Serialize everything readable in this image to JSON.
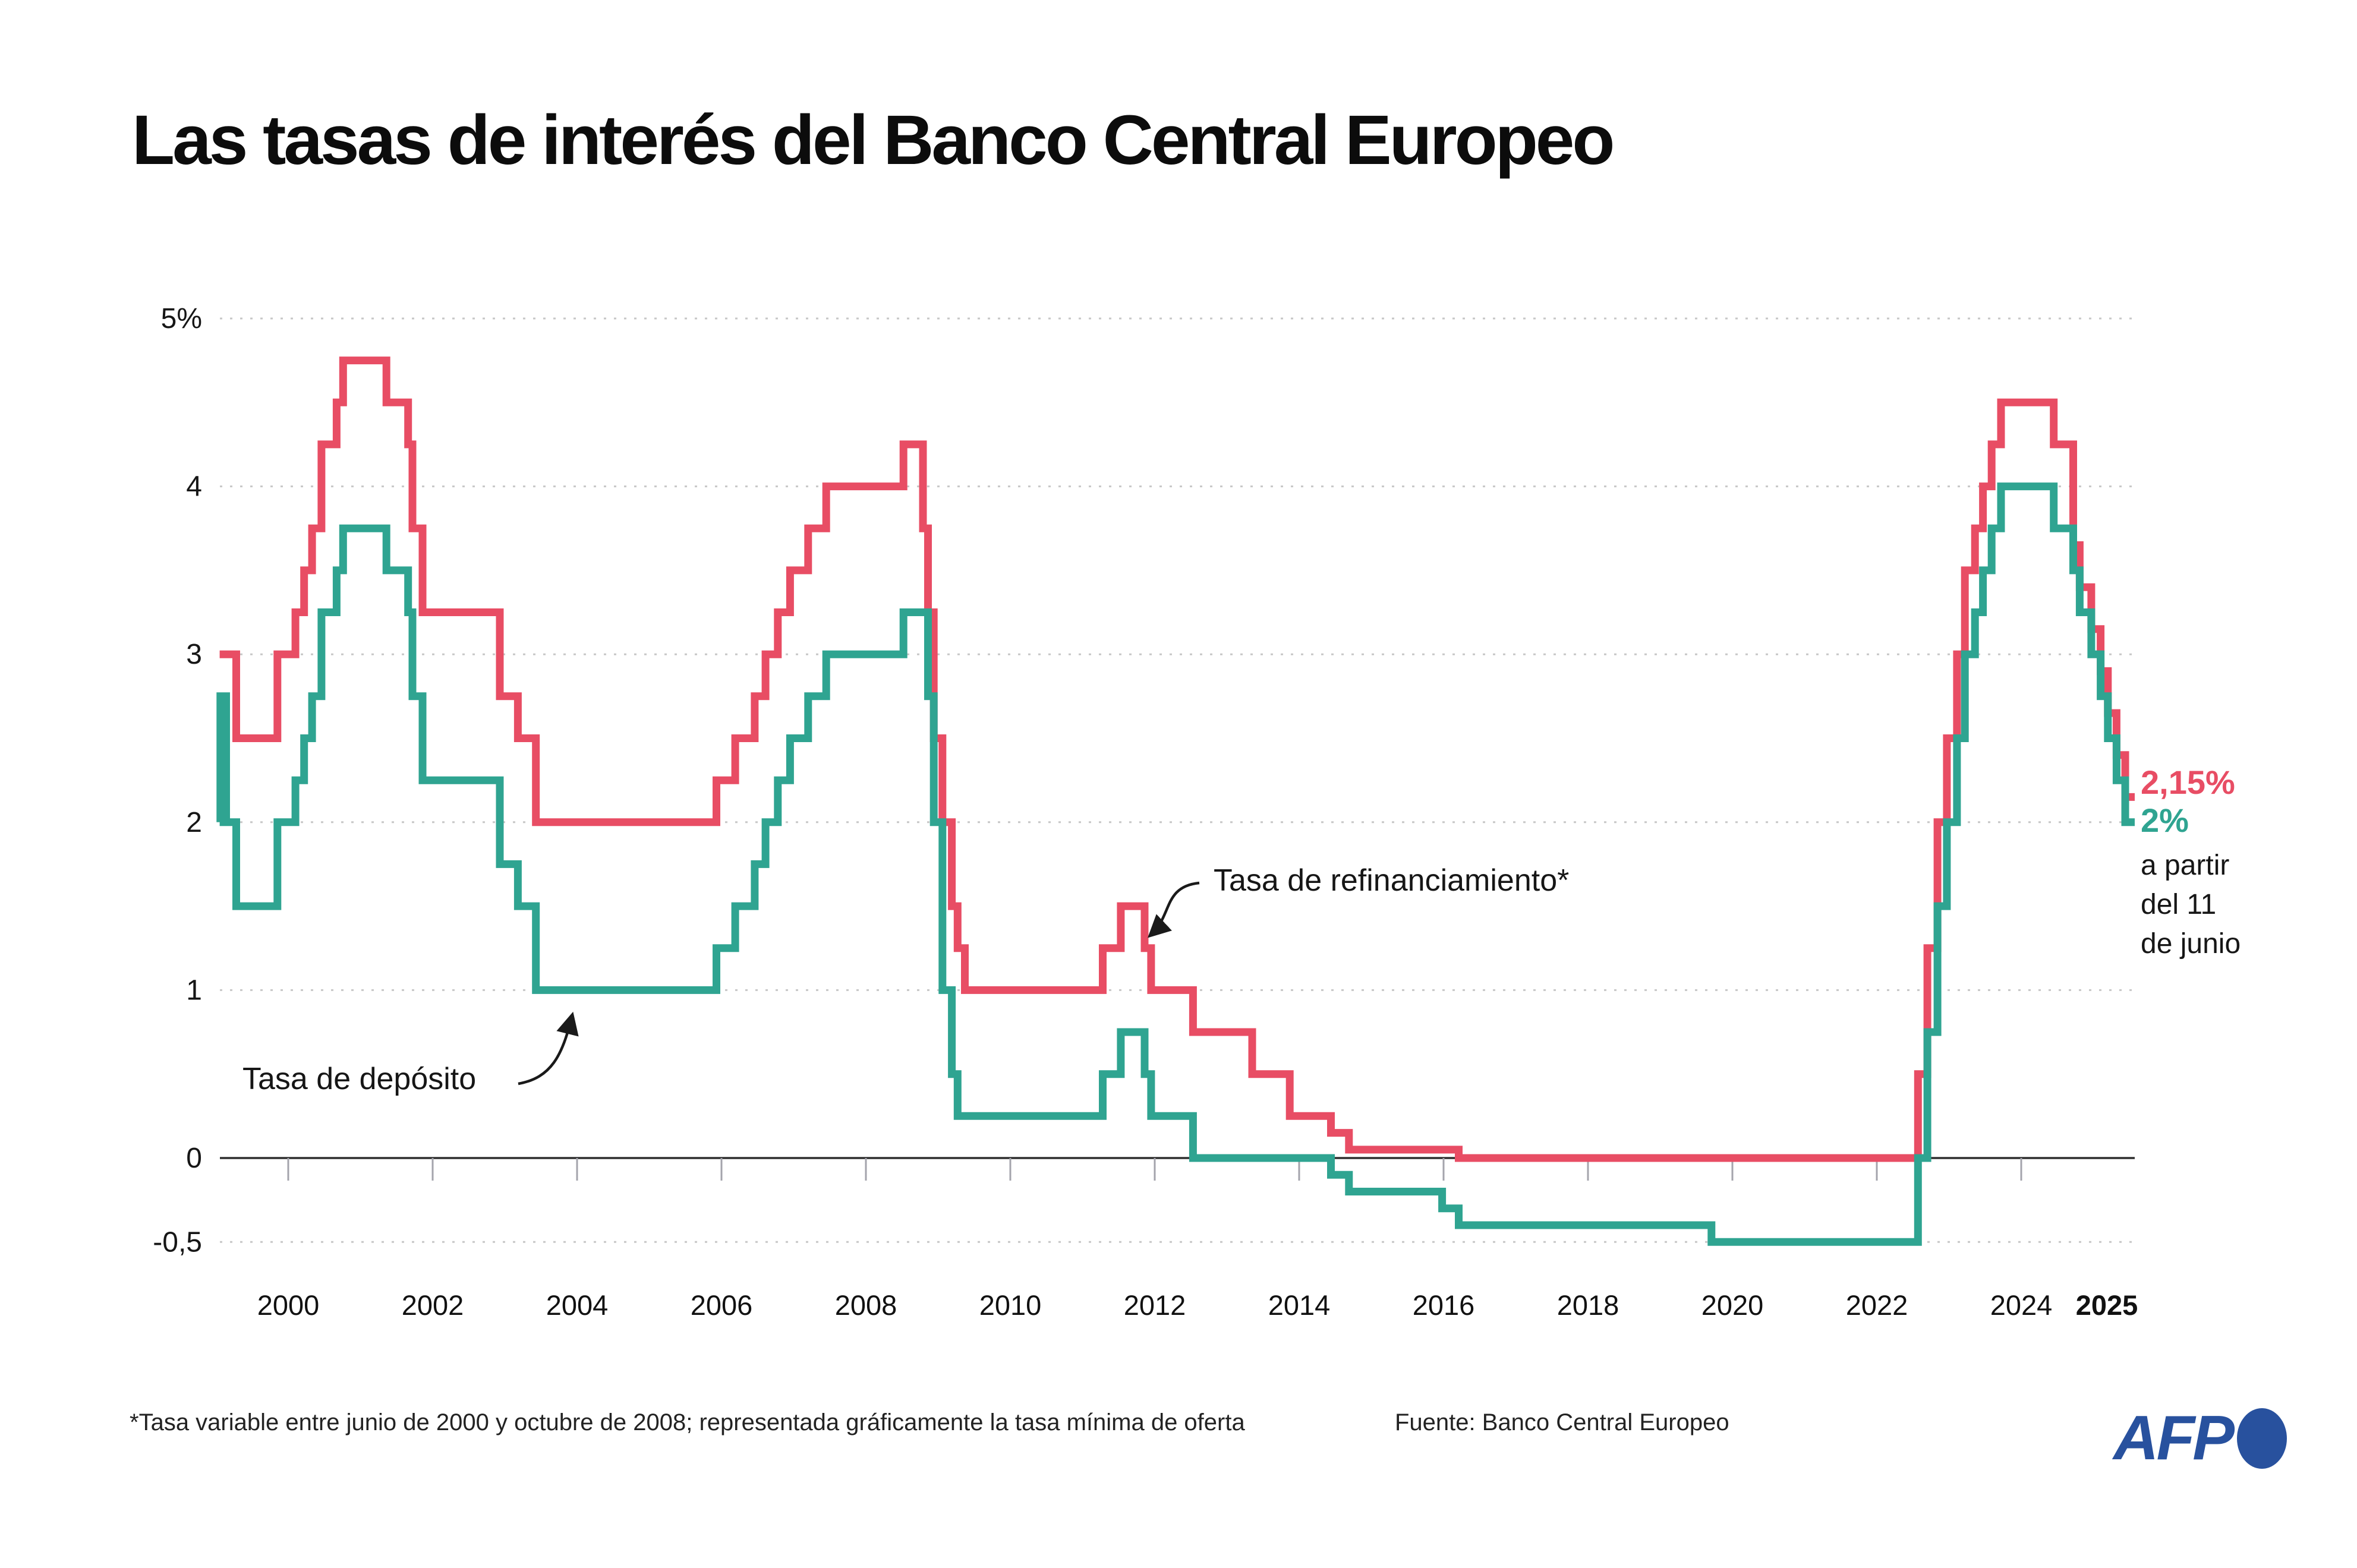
{
  "title": "Las tasas de interés del Banco Central Europeo",
  "labels": {
    "refinancing": "Tasa de refinanciamiento*",
    "deposit": "Tasa de depósito",
    "refinancing_rate": "2,15%",
    "deposit_rate": "2%",
    "effective_line1": "a partir",
    "effective_line2": "del 11",
    "effective_line3": "de junio"
  },
  "footer": {
    "note": "*Tasa variable entre junio de 2000 y octubre de 2008; representada gráficamente la tasa mínima de oferta",
    "source": "Fuente: Banco Central Europeo",
    "logo": "AFP"
  },
  "colors": {
    "refinancing": "#e84d64",
    "deposit": "#2fa491",
    "grid": "#c7c7c7",
    "zero_axis": "#2e2e2e",
    "tick": "#a4a4ac",
    "afp_blue": "#28519e"
  },
  "chart_data": {
    "type": "line",
    "step": true,
    "title": "Las tasas de interés del Banco Central Europeo",
    "xlabel": "",
    "ylabel": "%",
    "grid": "dotted horizontal",
    "legend_position": "inline annotations",
    "x_range": [
      1999.05,
      2025.57
    ],
    "ylim": [
      -0.75,
      5.3
    ],
    "y_axis": {
      "ticks": [
        {
          "value": 5,
          "label": "5%"
        },
        {
          "value": 4,
          "label": "4"
        },
        {
          "value": 3,
          "label": "3"
        },
        {
          "value": 2,
          "label": "2"
        },
        {
          "value": 1,
          "label": "1"
        },
        {
          "value": 0,
          "label": "0"
        },
        {
          "value": -0.5,
          "label": "-0,5"
        }
      ]
    },
    "x_axis": {
      "ticks": [
        {
          "year": 2000,
          "label": "2000"
        },
        {
          "year": 2002,
          "label": "2002"
        },
        {
          "year": 2004,
          "label": "2004"
        },
        {
          "year": 2006,
          "label": "2006"
        },
        {
          "year": 2008,
          "label": "2008"
        },
        {
          "year": 2010,
          "label": "2010"
        },
        {
          "year": 2012,
          "label": "2012"
        },
        {
          "year": 2014,
          "label": "2014"
        },
        {
          "year": 2016,
          "label": "2016"
        },
        {
          "year": 2018,
          "label": "2018"
        },
        {
          "year": 2020,
          "label": "2020"
        },
        {
          "year": 2022,
          "label": "2022"
        },
        {
          "year": 2024,
          "label": "2024"
        },
        {
          "year": 2025,
          "label": "2025",
          "bold": true,
          "x_override": 3545
        }
      ]
    },
    "series": [
      {
        "name": "Tasa de refinanciamiento*",
        "color": "#e84d64",
        "end_value_label": "2,15%",
        "points": [
          [
            1999.05,
            3.0
          ],
          [
            1999.28,
            2.5
          ],
          [
            1999.85,
            3.0
          ],
          [
            2000.1,
            3.25
          ],
          [
            2000.22,
            3.5
          ],
          [
            2000.33,
            3.75
          ],
          [
            2000.46,
            4.25
          ],
          [
            2000.67,
            4.5
          ],
          [
            2000.76,
            4.75
          ],
          [
            2001.36,
            4.5
          ],
          [
            2001.66,
            4.25
          ],
          [
            2001.72,
            3.75
          ],
          [
            2001.86,
            3.25
          ],
          [
            2002.93,
            2.75
          ],
          [
            2003.18,
            2.5
          ],
          [
            2003.43,
            2.0
          ],
          [
            2005.93,
            2.25
          ],
          [
            2006.19,
            2.5
          ],
          [
            2006.46,
            2.75
          ],
          [
            2006.61,
            3.0
          ],
          [
            2006.78,
            3.25
          ],
          [
            2006.95,
            3.5
          ],
          [
            2007.2,
            3.75
          ],
          [
            2007.45,
            4.0
          ],
          [
            2008.52,
            4.25
          ],
          [
            2008.79,
            3.75
          ],
          [
            2008.86,
            3.25
          ],
          [
            2008.94,
            2.5
          ],
          [
            2009.06,
            2.0
          ],
          [
            2009.19,
            1.5
          ],
          [
            2009.27,
            1.25
          ],
          [
            2009.37,
            1.0
          ],
          [
            2011.28,
            1.25
          ],
          [
            2011.53,
            1.5
          ],
          [
            2011.86,
            1.25
          ],
          [
            2011.95,
            1.0
          ],
          [
            2012.53,
            0.75
          ],
          [
            2013.35,
            0.5
          ],
          [
            2013.87,
            0.25
          ],
          [
            2014.44,
            0.15
          ],
          [
            2014.69,
            0.05
          ],
          [
            2016.21,
            0.0
          ],
          [
            2022.57,
            0.5
          ],
          [
            2022.7,
            1.25
          ],
          [
            2022.84,
            2.0
          ],
          [
            2022.97,
            2.5
          ],
          [
            2023.11,
            3.0
          ],
          [
            2023.22,
            3.5
          ],
          [
            2023.36,
            3.75
          ],
          [
            2023.47,
            4.0
          ],
          [
            2023.59,
            4.25
          ],
          [
            2023.72,
            4.5
          ],
          [
            2024.45,
            4.25
          ],
          [
            2024.72,
            3.65
          ],
          [
            2024.81,
            3.4
          ],
          [
            2024.97,
            3.15
          ],
          [
            2025.1,
            2.9
          ],
          [
            2025.2,
            2.65
          ],
          [
            2025.32,
            2.4
          ],
          [
            2025.44,
            2.15
          ],
          [
            2025.57,
            2.15
          ]
        ]
      },
      {
        "name": "Tasa de depósito",
        "color": "#2fa491",
        "end_value_label": "2%",
        "points": [
          [
            1999.05,
            2.0
          ],
          [
            1999.06,
            2.75
          ],
          [
            1999.14,
            2.0
          ],
          [
            1999.28,
            1.5
          ],
          [
            1999.85,
            2.0
          ],
          [
            2000.1,
            2.25
          ],
          [
            2000.22,
            2.5
          ],
          [
            2000.33,
            2.75
          ],
          [
            2000.46,
            3.25
          ],
          [
            2000.67,
            3.5
          ],
          [
            2000.76,
            3.75
          ],
          [
            2001.36,
            3.5
          ],
          [
            2001.66,
            3.25
          ],
          [
            2001.72,
            2.75
          ],
          [
            2001.86,
            2.25
          ],
          [
            2002.93,
            1.75
          ],
          [
            2003.18,
            1.5
          ],
          [
            2003.43,
            1.0
          ],
          [
            2005.93,
            1.25
          ],
          [
            2006.19,
            1.5
          ],
          [
            2006.46,
            1.75
          ],
          [
            2006.61,
            2.0
          ],
          [
            2006.78,
            2.25
          ],
          [
            2006.95,
            2.5
          ],
          [
            2007.2,
            2.75
          ],
          [
            2007.45,
            3.0
          ],
          [
            2008.52,
            3.25
          ],
          [
            2008.86,
            2.75
          ],
          [
            2008.94,
            2.0
          ],
          [
            2009.06,
            1.0
          ],
          [
            2009.19,
            0.5
          ],
          [
            2009.27,
            0.25
          ],
          [
            2011.28,
            0.5
          ],
          [
            2011.53,
            0.75
          ],
          [
            2011.86,
            0.5
          ],
          [
            2011.95,
            0.25
          ],
          [
            2012.53,
            0.0
          ],
          [
            2014.44,
            -0.1
          ],
          [
            2014.69,
            -0.2
          ],
          [
            2015.98,
            -0.3
          ],
          [
            2016.21,
            -0.4
          ],
          [
            2019.71,
            -0.5
          ],
          [
            2022.57,
            0.0
          ],
          [
            2022.7,
            0.75
          ],
          [
            2022.84,
            1.5
          ],
          [
            2022.97,
            2.0
          ],
          [
            2023.11,
            2.5
          ],
          [
            2023.22,
            3.0
          ],
          [
            2023.36,
            3.25
          ],
          [
            2023.47,
            3.5
          ],
          [
            2023.59,
            3.75
          ],
          [
            2023.72,
            4.0
          ],
          [
            2024.45,
            3.75
          ],
          [
            2024.72,
            3.5
          ],
          [
            2024.81,
            3.25
          ],
          [
            2024.97,
            3.0
          ],
          [
            2025.1,
            2.75
          ],
          [
            2025.2,
            2.5
          ],
          [
            2025.32,
            2.25
          ],
          [
            2025.44,
            2.0
          ],
          [
            2025.57,
            2.0
          ]
        ]
      }
    ],
    "annotations": [
      {
        "text": "Tasa de refinanciamiento*",
        "points_to": "refinancing series 2011 peak"
      },
      {
        "text": "Tasa de depósito",
        "points_to": "deposit series 2004 plateau"
      },
      {
        "text": "2,15%",
        "series": "refinancing",
        "at": "end"
      },
      {
        "text": "2%",
        "series": "deposit",
        "at": "end"
      },
      {
        "text": "a partir del 11 de junio",
        "at": "end"
      }
    ]
  }
}
